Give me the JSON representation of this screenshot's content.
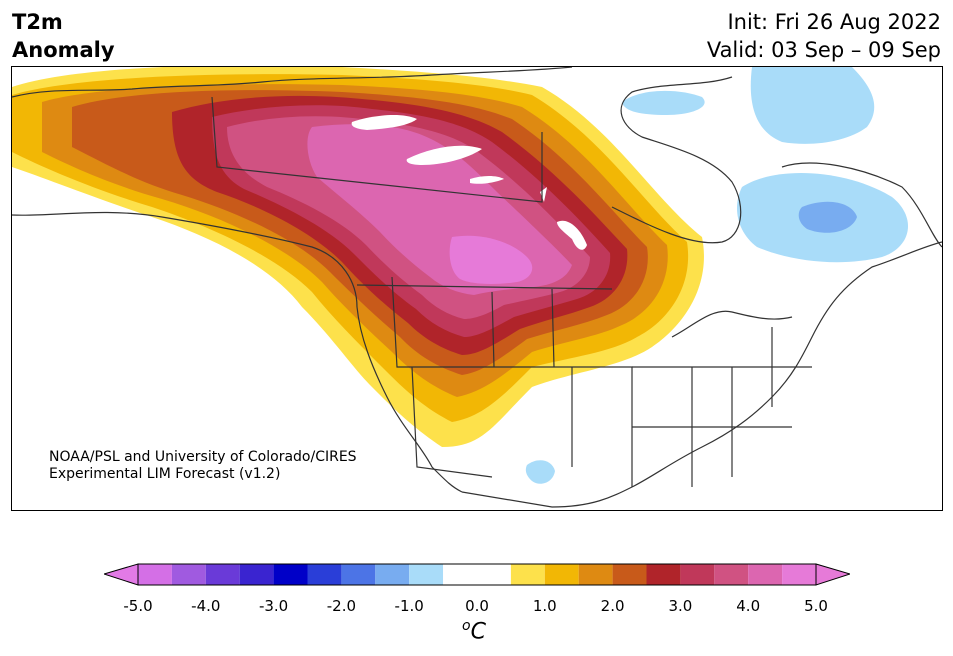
{
  "title": {
    "left_line1": "T2m",
    "left_line2": "Anomaly",
    "init": "Init: Fri 26 Aug 2022",
    "valid": "Valid: 03 Sep – 09 Sep"
  },
  "credit": {
    "line1": "NOAA/PSL and University of Colorado/CIRES",
    "line2": "Experimental LIM Forecast (v1.2)"
  },
  "colorbar": {
    "units_base": "C",
    "units_sup": "o",
    "tick_labels": [
      "-5.0",
      "-4.0",
      "-3.0",
      "-2.0",
      "-1.0",
      "0.0",
      "1.0",
      "2.0",
      "3.0",
      "4.0",
      "5.0"
    ],
    "colors": [
      "#d46fe6",
      "#a05ae0",
      "#6a3ad8",
      "#3a24d0",
      "#0000c8",
      "#2a3ed8",
      "#4c74e6",
      "#78acf0",
      "#a9dcf9",
      "#ffffff",
      "#ffffff",
      "#fde14b",
      "#f2b705",
      "#de8a12",
      "#c85a1a",
      "#b0242a",
      "#c0385a",
      "#d05282",
      "#dc66b0",
      "#e67ad8"
    ],
    "extend_min_color": "#e27ae6",
    "extend_max_color": "#e67ad8"
  },
  "map": {
    "region": "North America",
    "field": "2m temperature anomaly",
    "description_colors": {
      "warm_core": "#e67ad8",
      "cool_anomaly": "#a9dcf9"
    }
  }
}
